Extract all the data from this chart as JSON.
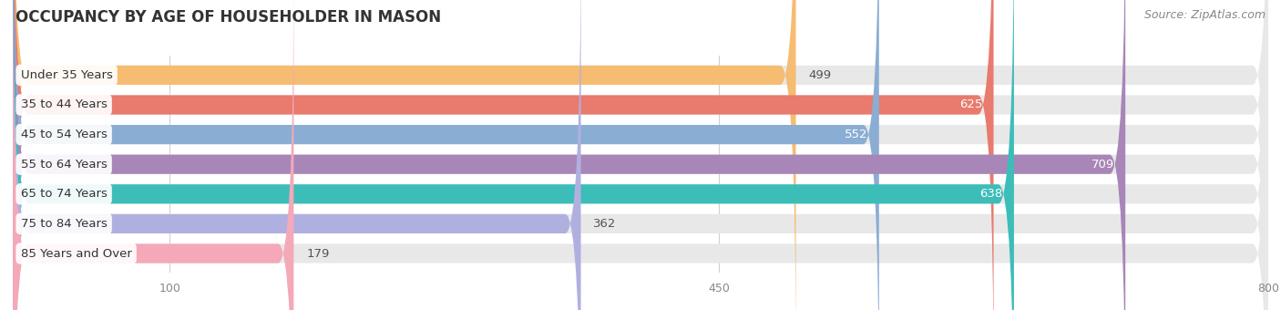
{
  "title": "OCCUPANCY BY AGE OF HOUSEHOLDER IN MASON",
  "source": "Source: ZipAtlas.com",
  "categories": [
    "Under 35 Years",
    "35 to 44 Years",
    "45 to 54 Years",
    "55 to 64 Years",
    "65 to 74 Years",
    "75 to 84 Years",
    "85 Years and Over"
  ],
  "values": [
    499,
    625,
    552,
    709,
    638,
    362,
    179
  ],
  "bar_colors": [
    "#f5bc72",
    "#e87a6e",
    "#8aadd4",
    "#a886b8",
    "#3dbdb8",
    "#b0b0e0",
    "#f4a8b8"
  ],
  "bar_bg_color": "#e8e8e8",
  "xlim_min": 0,
  "xlim_max": 800,
  "xticks": [
    100,
    450,
    800
  ],
  "value_inside_threshold": 550,
  "value_color_inside": "#ffffff",
  "value_color_outside": "#555555",
  "background_color": "#ffffff",
  "title_fontsize": 12,
  "source_fontsize": 9,
  "bar_height": 0.65,
  "label_fontsize": 9.5,
  "value_fontsize": 9.5,
  "label_bg_color": "#ffffff",
  "label_text_color": "#333333",
  "tick_color": "#888888",
  "grid_color": "#d0d0d0",
  "title_color": "#333333"
}
